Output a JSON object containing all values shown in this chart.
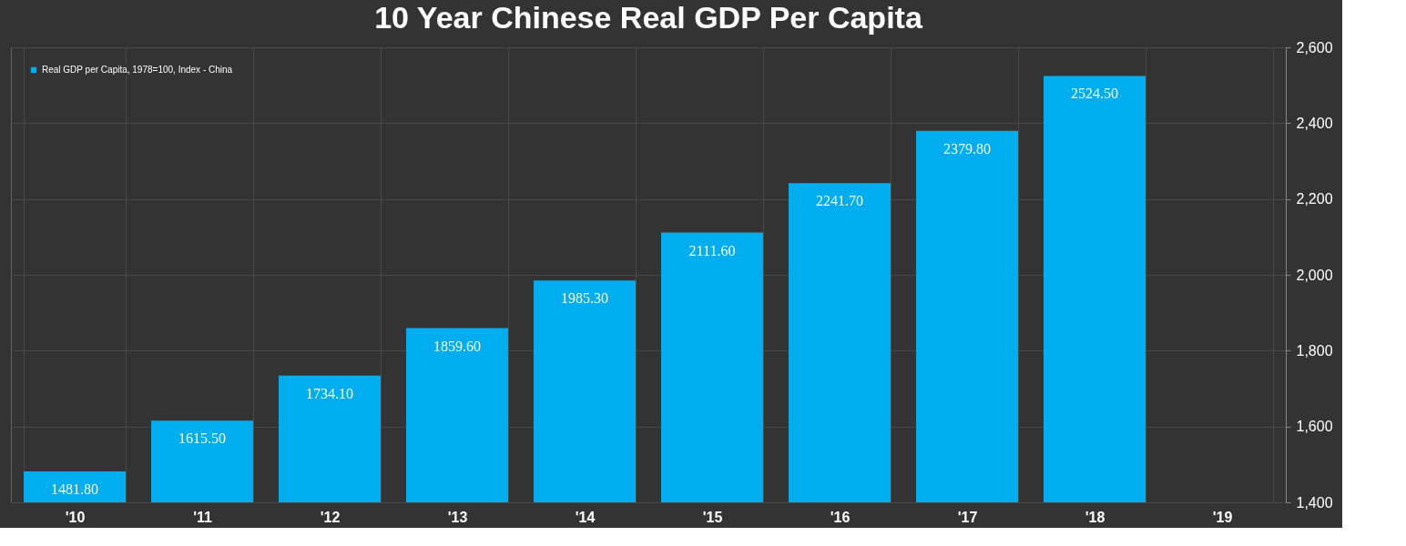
{
  "chart_data": {
    "type": "bar",
    "title": "10 Year Chinese Real GDP Per Capita",
    "categories": [
      "'10",
      "'11",
      "'12",
      "'13",
      "'14",
      "'15",
      "'16",
      "'17",
      "'18",
      "'19"
    ],
    "series": [
      {
        "name": "Real GDP per Capita, 1978=100, Index - China",
        "color": "#00aeef",
        "values": [
          1481.8,
          1615.5,
          1734.1,
          1859.6,
          1985.3,
          2111.6,
          2241.7,
          2379.8,
          2524.5,
          null
        ],
        "value_labels": [
          "1481.80",
          "1615.50",
          "1734.10",
          "1859.60",
          "1985.30",
          "2111.60",
          "2241.70",
          "2379.80",
          "2524.50",
          null
        ]
      }
    ],
    "ylim": [
      1400,
      2600
    ],
    "yticks": [
      {
        "value": 1400,
        "label": "1,400"
      },
      {
        "value": 1600,
        "label": "1,600"
      },
      {
        "value": 1800,
        "label": "1,800"
      },
      {
        "value": 2000,
        "label": "2,000"
      },
      {
        "value": 2200,
        "label": "2,200"
      },
      {
        "value": 2400,
        "label": "2,400"
      },
      {
        "value": 2600,
        "label": "2,600"
      }
    ],
    "grid": true,
    "legend": "top left"
  }
}
